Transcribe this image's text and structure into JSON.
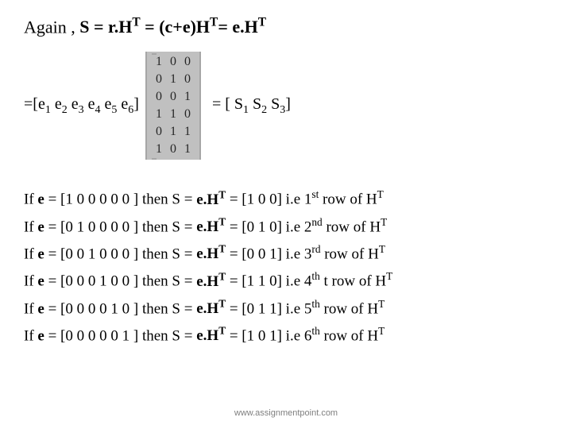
{
  "title_line": {
    "prefix": "Again , ",
    "bold": "S = r.H",
    "sup1": "T",
    "mid1": " = (c+e)H",
    "sup2": "T",
    "mid2": "= e.H",
    "sup3": "T"
  },
  "row_vec": {
    "prefix": "=[e",
    "subs": [
      "1",
      "2",
      "3",
      "4",
      "5",
      "6"
    ],
    "sep": "  e",
    "suffix": "]"
  },
  "matrix": {
    "rows": [
      [
        "1",
        "0",
        "0"
      ],
      [
        "0",
        "1",
        "0"
      ],
      [
        "0",
        "0",
        "1"
      ],
      [
        "1",
        "1",
        "0"
      ],
      [
        "0",
        "1",
        "1"
      ],
      [
        "1",
        "0",
        "1"
      ]
    ],
    "bg": "#c0c0c0",
    "border": "#a6a6a6",
    "text_color": "#262626"
  },
  "rhs": {
    "prefix": "= [ S",
    "subs": [
      "1",
      "2",
      "3"
    ],
    "sep": " S",
    "suffix": "]"
  },
  "cases": [
    {
      "e": "[1 0  0  0  0  0 ]",
      "s": "[1 0 0]",
      "ord": "1",
      "ord_suf": "st",
      "extra": ""
    },
    {
      "e": "[0 1  0  0  0  0 ]",
      "s": "[0 1 0]",
      "ord": "2",
      "ord_suf": "nd",
      "extra": ""
    },
    {
      "e": "[0 0  1  0  0  0 ]",
      "s": "[0 0 1]",
      "ord": "3",
      "ord_suf": "rd",
      "extra": ""
    },
    {
      "e": "[0  0  0  1  0  0 ]",
      "s": "[1 1 0]",
      "ord": "4",
      "ord_suf": "th",
      "extra": " t"
    },
    {
      "e": "[0 0  0  0  1  0 ]",
      "s": "[0 1 1]",
      "ord": "5",
      "ord_suf": "th",
      "extra": ""
    },
    {
      "e": "[0 0  0  0  0  1 ]",
      "s": "[1 0 1]",
      "ord": "6",
      "ord_suf": "th",
      "extra": ""
    }
  ],
  "case_tpl": {
    "p1": "If ",
    "p2": "e",
    "p3": " = ",
    "p4": " then S = ",
    "p5": "e.H",
    "p6": " = ",
    "p7": "  i.e ",
    "p8": " row of  H"
  },
  "footer": "www.assignmentpoint.com"
}
